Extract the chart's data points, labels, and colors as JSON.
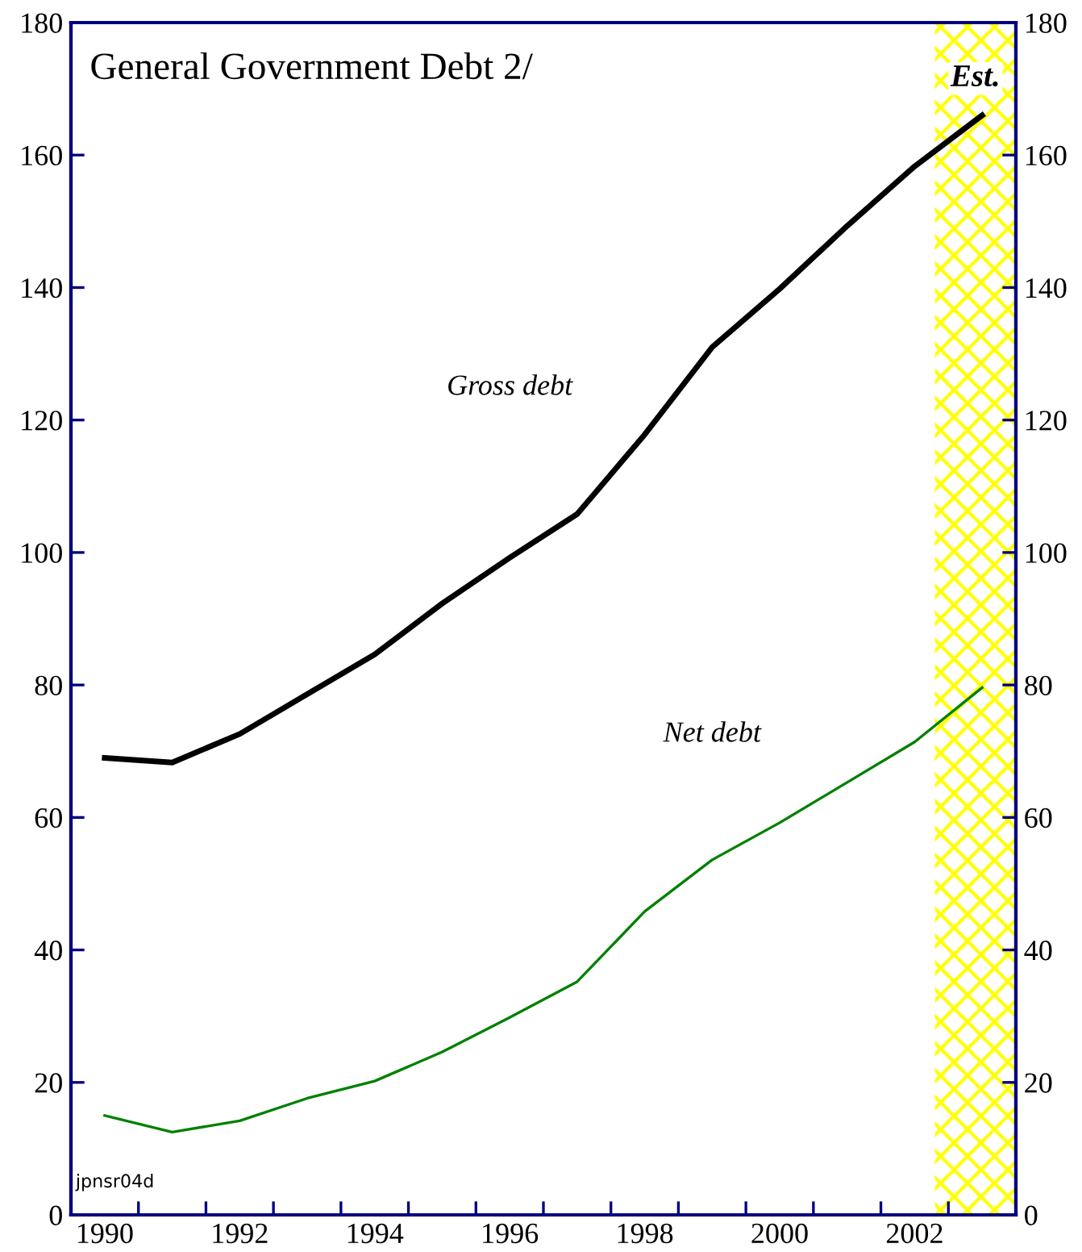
{
  "chart_data": {
    "type": "line",
    "title": "General Government Debt 2/",
    "x": [
      1990,
      1991,
      1992,
      1993,
      1994,
      1995,
      1996,
      1997,
      1998,
      1999,
      2000,
      2001,
      2002,
      2003
    ],
    "series": [
      {
        "name": "Gross debt",
        "color": "#000000",
        "values": [
          69,
          68.3,
          72.6,
          78.6,
          84.6,
          92.3,
          99.2,
          105.8,
          117.8,
          131,
          139.8,
          149.3,
          158.3,
          166
        ]
      },
      {
        "name": "Net debt",
        "color": "#008000",
        "values": [
          15,
          12.5,
          14.2,
          17.6,
          20.2,
          24.6,
          29.8,
          35.2,
          45.8,
          53.6,
          59.2,
          65.3,
          71.4,
          79.6
        ]
      }
    ],
    "xlim": [
      1989.5,
      2003.5
    ],
    "xticks": [
      1990,
      {
        "value": 1990.5,
        "label": null
      },
      {
        "value": 1991.5,
        "label": null
      },
      1992,
      {
        "value": 1992.5,
        "label": null
      },
      {
        "value": 1993.5,
        "label": null
      },
      1994,
      {
        "value": 1994.5,
        "label": null
      },
      {
        "value": 1995.5,
        "label": null
      },
      1996,
      {
        "value": 1996.5,
        "label": null
      },
      {
        "value": 1997.5,
        "label": null
      },
      1998,
      {
        "value": 1998.5,
        "label": null
      },
      {
        "value": 1999.5,
        "label": null
      },
      2000,
      {
        "value": 2000.5,
        "label": null
      },
      {
        "value": 2001.5,
        "label": null
      },
      2002,
      {
        "value": 2002.5,
        "label": null
      }
    ],
    "ylim": [
      0,
      180
    ],
    "yticks": [
      0,
      20,
      40,
      60,
      80,
      100,
      120,
      140,
      160,
      180
    ],
    "y2lim": [
      0,
      180
    ],
    "y2ticks": [
      0,
      20,
      40,
      60,
      80,
      100,
      120,
      140,
      160,
      180
    ],
    "bands": [
      {
        "axis": "x",
        "from": 2002.3,
        "to": 2003.5,
        "label": "Est.",
        "color": "#ffff00"
      }
    ],
    "annotations": [
      "jpnsr04d"
    ],
    "grid": false,
    "legend": false,
    "marker": "none",
    "line_style": "solid"
  }
}
